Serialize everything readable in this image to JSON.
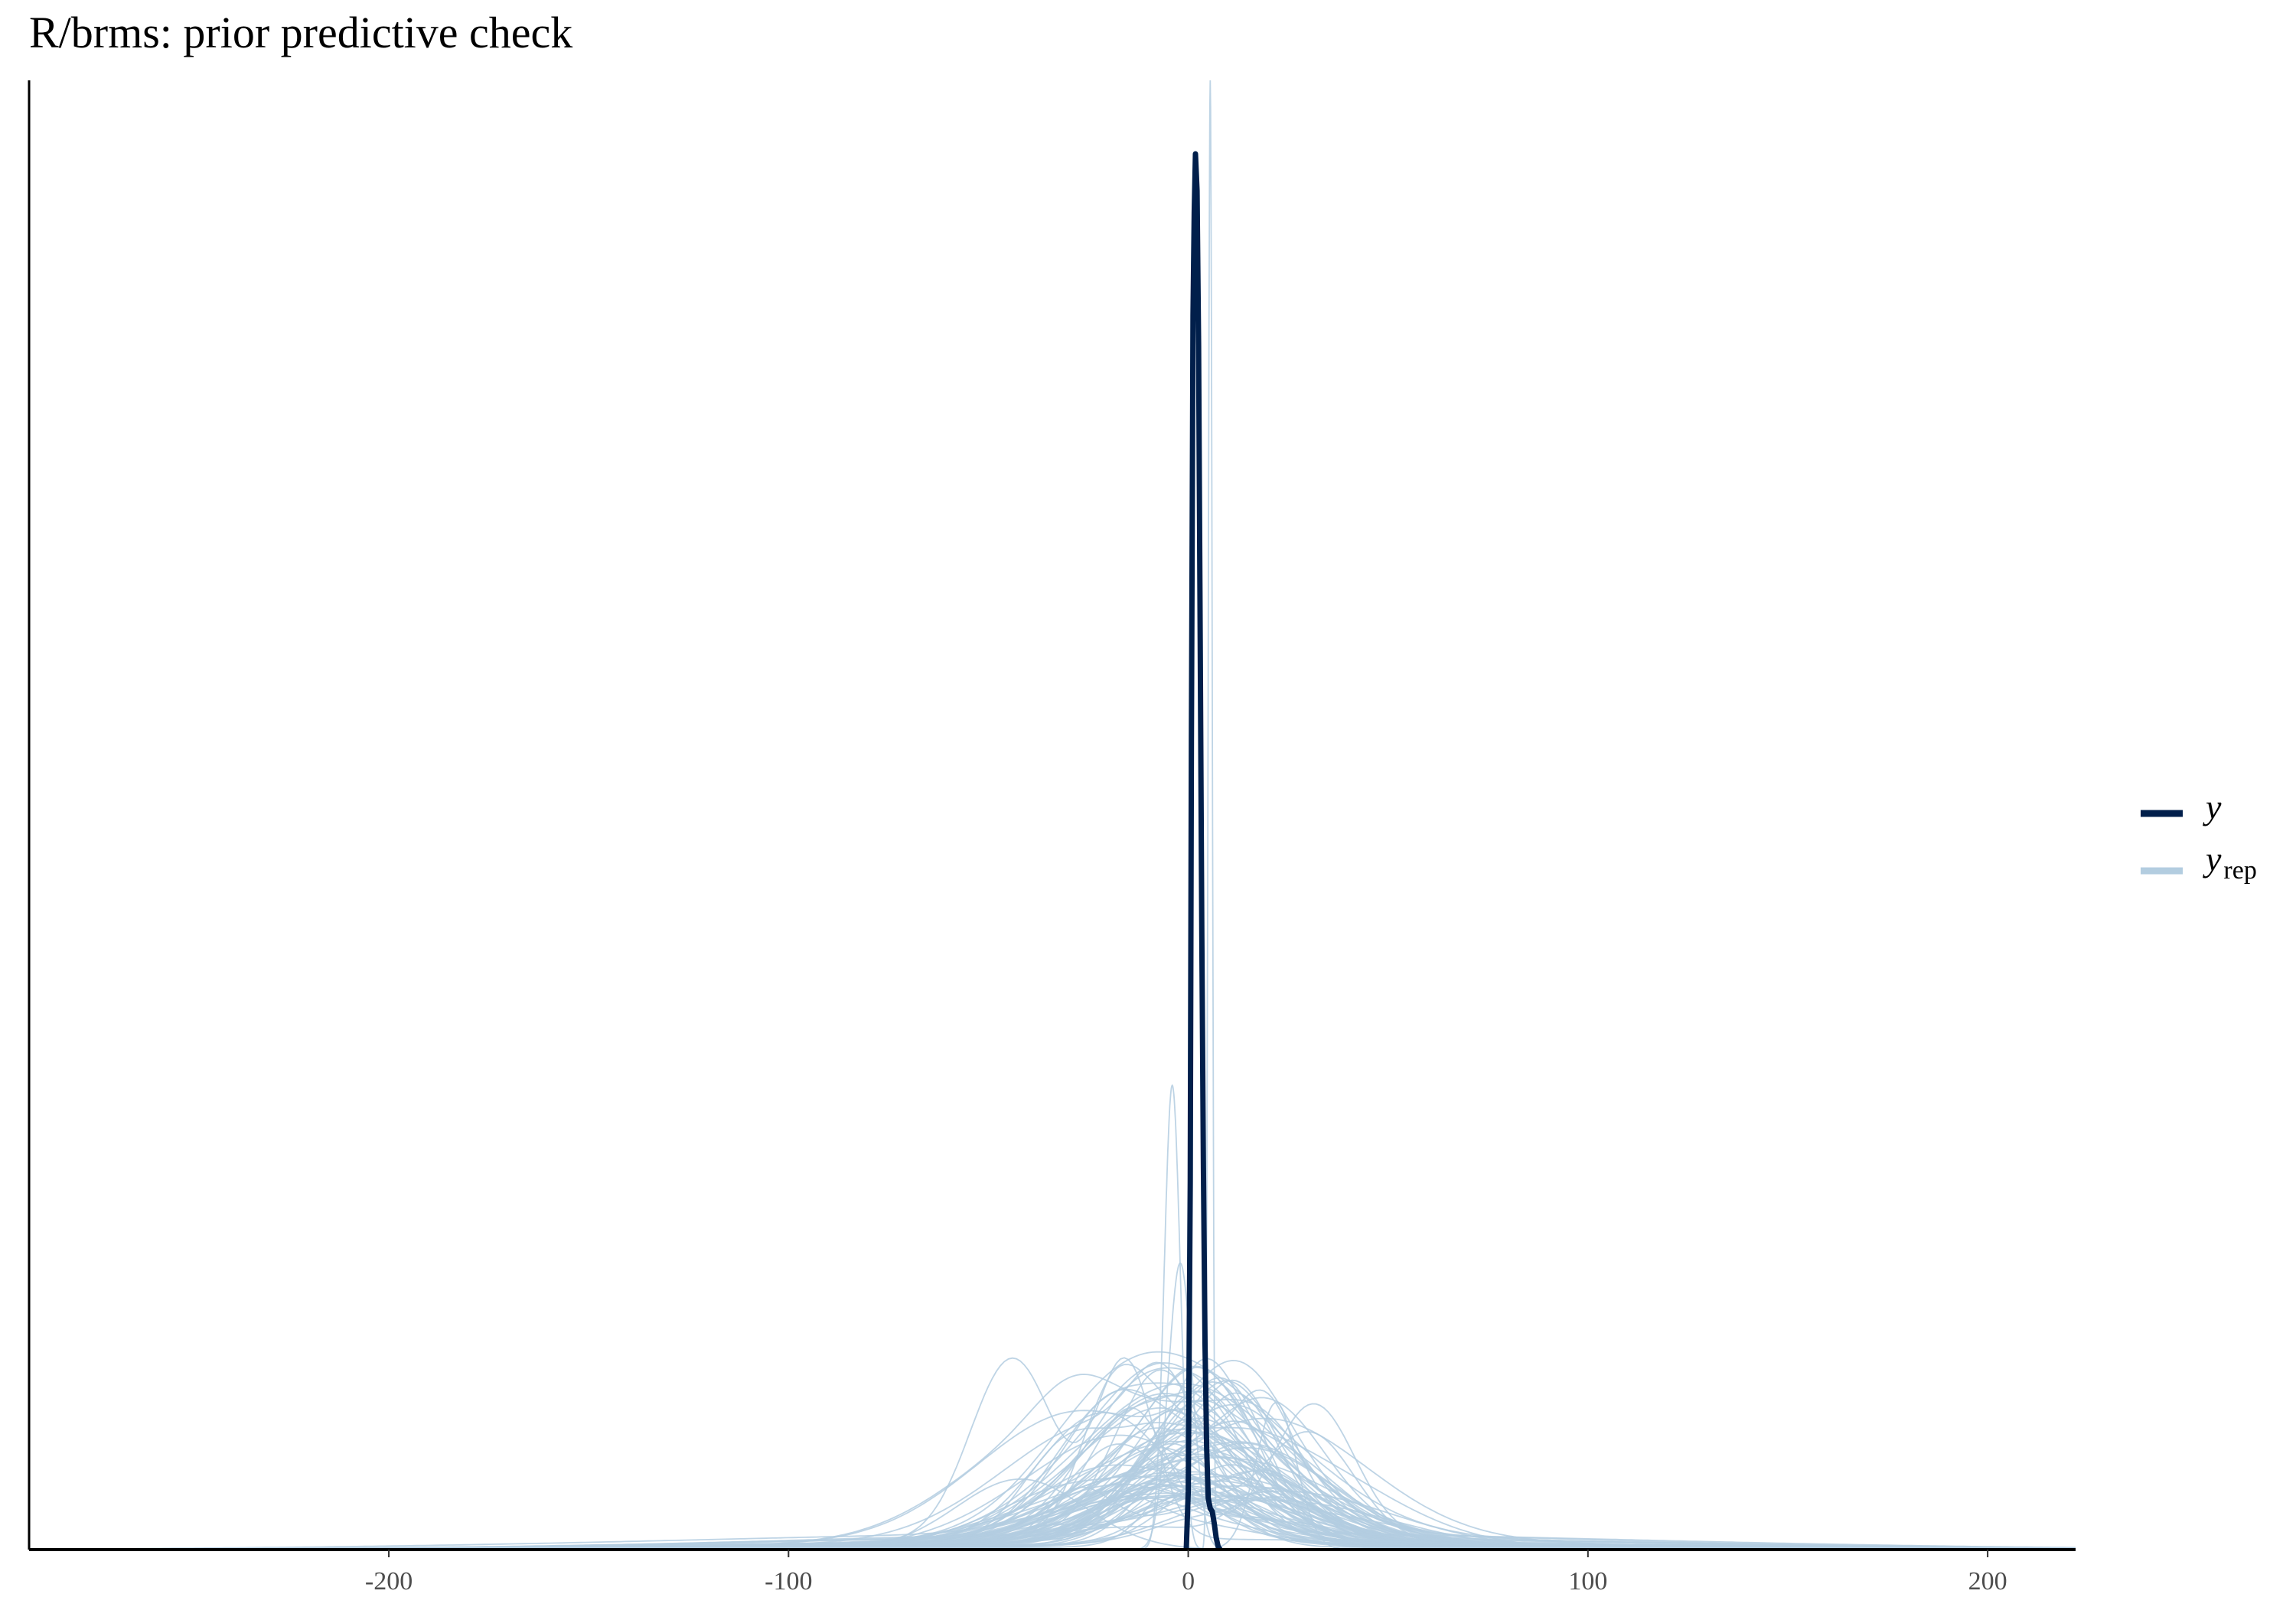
{
  "chart_data": {
    "type": "line",
    "title": "R/brms: prior predictive check",
    "xlabel": "",
    "ylabel": "",
    "xlim": [
      -290,
      222
    ],
    "ylim": [
      0,
      1.0
    ],
    "x_ticks": [
      "-200",
      "-100",
      "0",
      "100",
      "200"
    ],
    "x_tick_values": [
      -200,
      -100,
      0,
      100,
      200
    ],
    "y_ticks_shown": false,
    "grid": false,
    "legend_position": "right",
    "legend": [
      {
        "label": "y",
        "subscript": "",
        "color": "#011f4b"
      },
      {
        "label": "y",
        "subscript": "rep",
        "color": "#b3cde0"
      }
    ],
    "series": [
      {
        "name": "y",
        "color": "#011f4b",
        "x": [
          -0.5,
          0,
          0.5,
          0.8,
          1.2,
          1.5,
          1.8,
          2.2,
          2.6,
          3.0,
          3.4,
          3.8,
          4.2,
          4.6,
          5.0,
          5.5,
          6.0,
          6.5,
          7.0,
          7.5,
          8.0
        ],
        "y": [
          0.0,
          0.04,
          0.25,
          0.55,
          0.84,
          0.91,
          0.95,
          0.925,
          0.82,
          0.62,
          0.42,
          0.26,
          0.14,
          0.07,
          0.035,
          0.028,
          0.026,
          0.018,
          0.008,
          0.002,
          0.0
        ]
      }
    ],
    "replicates": {
      "name": "y_rep",
      "color": "#b3cde0",
      "count": 100,
      "sharp_peaks": [
        {
          "center": 5.5,
          "sd": 0.5,
          "height": 1.0
        },
        {
          "center": -4.0,
          "sd": 2.0,
          "height": 0.316
        },
        {
          "center": -2.0,
          "sd": 3.0,
          "height": 0.195
        },
        {
          "center": 22.0,
          "sd": 5.0,
          "height": 0.1
        },
        {
          "center": -42.0,
          "sd": 16.0,
          "height": 0.048
        }
      ]
    }
  }
}
